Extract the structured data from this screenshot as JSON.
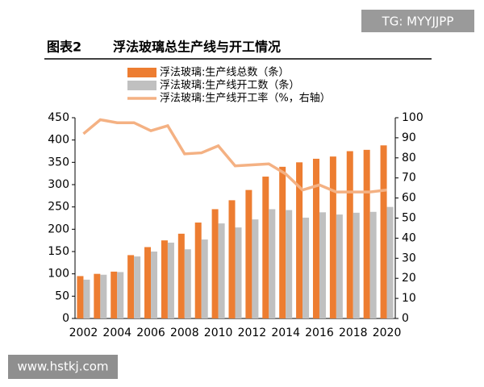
{
  "label": "图表2",
  "watermarks": [
    "TG: MYYJJPP",
    "www.hstkj.com"
  ],
  "chart_data": {
    "type": "bar",
    "title": "浮法玻璃总生产线与开工情况",
    "categories": [
      "2002",
      null,
      "2004",
      null,
      "2006",
      null,
      "2008",
      null,
      "2010",
      null,
      "2012",
      null,
      "2014",
      null,
      "2016",
      null,
      "2018",
      null,
      "2020"
    ],
    "series": [
      {
        "name": "浮法玻璃:生产线总数（条）",
        "color": "#ed7d31",
        "values": [
          95,
          100,
          105,
          142,
          160,
          175,
          190,
          215,
          245,
          265,
          288,
          318,
          340,
          350,
          358,
          363,
          375,
          378,
          388
        ]
      },
      {
        "name": "浮法玻璃:生产线开工数（条）",
        "color": "#c0c0c0",
        "values": [
          87,
          98,
          104,
          139,
          150,
          170,
          155,
          177,
          213,
          204,
          222,
          245,
          243,
          226,
          238,
          233,
          237,
          239,
          250
        ]
      },
      {
        "name": "浮法玻璃:生产线开工率（%，右轴）",
        "color": "#f4b183",
        "type": "line",
        "axis": "y2",
        "values": [
          92,
          99,
          97.5,
          97.5,
          93.5,
          96,
          82,
          82.5,
          86,
          76,
          76.5,
          77,
          72,
          64,
          66.5,
          63,
          63,
          63,
          64
        ]
      }
    ],
    "ylim": [
      0,
      450
    ],
    "yticks": [
      0,
      50,
      100,
      150,
      200,
      250,
      300,
      350,
      400,
      450
    ],
    "y2lim": [
      0,
      100
    ],
    "y2ticks": [
      0,
      10,
      20,
      30,
      40,
      50,
      60,
      70,
      80,
      90,
      100
    ]
  }
}
